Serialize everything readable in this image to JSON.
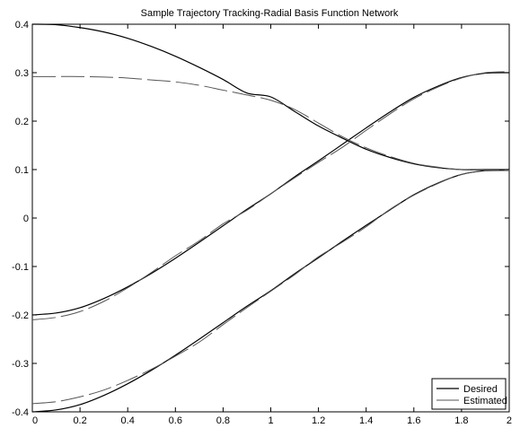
{
  "chart_data": {
    "type": "line",
    "title": "Sample Trajectory Tracking-Radial Basis Function Network",
    "xlabel": "",
    "ylabel": "",
    "xlim": [
      0,
      2
    ],
    "ylim": [
      -0.4,
      0.4
    ],
    "x_ticks": [
      "0",
      "0.2",
      "0.4",
      "0.6",
      "0.8",
      "1",
      "1.2",
      "1.4",
      "1.6",
      "1.8",
      "2"
    ],
    "y_ticks": [
      "0.4",
      "0.3",
      "0.2",
      "0.1",
      "0",
      "-0.1",
      "-0.2",
      "-0.3",
      "-0.4"
    ],
    "grid": false,
    "legend_position": "bottom-right",
    "legend": [
      "Desired",
      "Estimated"
    ],
    "x": [
      0,
      0.1,
      0.2,
      0.3,
      0.4,
      0.5,
      0.6,
      0.7,
      0.8,
      0.9,
      1.0,
      1.1,
      1.2,
      1.3,
      1.4,
      1.5,
      1.6,
      1.7,
      1.8,
      1.9,
      2.0
    ],
    "series": [
      {
        "name": "Desired",
        "style": "solid",
        "curves": [
          [
            0.4,
            0.399,
            0.393,
            0.384,
            0.371,
            0.354,
            0.334,
            0.311,
            0.286,
            0.258,
            0.25,
            0.22,
            0.19,
            0.165,
            0.142,
            0.125,
            0.112,
            0.104,
            0.1,
            0.1,
            0.1
          ],
          [
            -0.2,
            -0.196,
            -0.185,
            -0.166,
            -0.142,
            -0.114,
            -0.083,
            -0.05,
            -0.016,
            0.018,
            0.05,
            0.085,
            0.118,
            0.152,
            0.186,
            0.219,
            0.249,
            0.272,
            0.29,
            0.299,
            0.3
          ],
          [
            -0.4,
            -0.396,
            -0.385,
            -0.366,
            -0.342,
            -0.314,
            -0.283,
            -0.25,
            -0.216,
            -0.182,
            -0.15,
            -0.115,
            -0.082,
            -0.048,
            -0.015,
            0.017,
            0.048,
            0.072,
            0.09,
            0.098,
            0.1
          ]
        ]
      },
      {
        "name": "Estimated",
        "style": "dashed",
        "curves": [
          [
            0.292,
            0.292,
            0.292,
            0.291,
            0.289,
            0.285,
            0.281,
            0.274,
            0.264,
            0.254,
            0.243,
            0.224,
            0.196,
            0.168,
            0.145,
            0.127,
            0.113,
            0.105,
            0.1,
            0.099,
            0.099
          ],
          [
            -0.21,
            -0.205,
            -0.193,
            -0.172,
            -0.144,
            -0.112,
            -0.078,
            -0.047,
            -0.012,
            0.016,
            0.05,
            0.083,
            0.115,
            0.146,
            0.181,
            0.215,
            0.246,
            0.27,
            0.289,
            0.3,
            0.302
          ],
          [
            -0.383,
            -0.379,
            -0.369,
            -0.355,
            -0.335,
            -0.312,
            -0.285,
            -0.256,
            -0.22,
            -0.185,
            -0.151,
            -0.117,
            -0.08,
            -0.05,
            -0.018,
            0.018,
            0.047,
            0.071,
            0.09,
            0.097,
            0.098
          ]
        ]
      }
    ]
  }
}
